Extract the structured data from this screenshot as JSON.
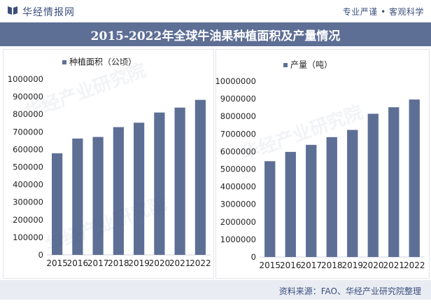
{
  "header": {
    "brand": "华经情报网",
    "slogan": "专业严谨 • 客观科学",
    "logo_icon": "book-logo-icon"
  },
  "title": "2015-2022年全球牛油果种植面积及产量情况",
  "footer": {
    "source": "资料来源：FAO、华经产业研究院整理"
  },
  "colors": {
    "bar": "#5e6f96",
    "title_band": "#5e6f96",
    "footer_band": "#e9ecf2",
    "text_accent": "#3b4f7e"
  },
  "chart_data": [
    {
      "type": "bar",
      "legend": "种植面积（公顷）",
      "categories": [
        "2015",
        "2016",
        "2017",
        "2018",
        "2019",
        "2020",
        "2021",
        "2022"
      ],
      "values": [
        578000,
        662000,
        671000,
        727000,
        752000,
        810000,
        838000,
        882000
      ],
      "ylim": [
        0,
        1000000
      ],
      "yticks": [
        "0",
        "100000",
        "200000",
        "300000",
        "400000",
        "500000",
        "600000",
        "700000",
        "800000",
        "900000",
        "1000000"
      ],
      "legend_position": "top-left",
      "grid": false
    },
    {
      "type": "bar",
      "legend": "产量（吨）",
      "categories": [
        "2015",
        "2016",
        "2017",
        "2018",
        "2019",
        "2020",
        "2021",
        "2022"
      ],
      "values": [
        5450000,
        5980000,
        6380000,
        6820000,
        7230000,
        8150000,
        8520000,
        8960000
      ],
      "ylim": [
        0,
        10000000
      ],
      "yticks": [
        "0",
        "1000000",
        "2000000",
        "3000000",
        "4000000",
        "5000000",
        "6000000",
        "7000000",
        "8000000",
        "9000000",
        "10000000"
      ],
      "legend_position": "top-left",
      "grid": false
    }
  ]
}
